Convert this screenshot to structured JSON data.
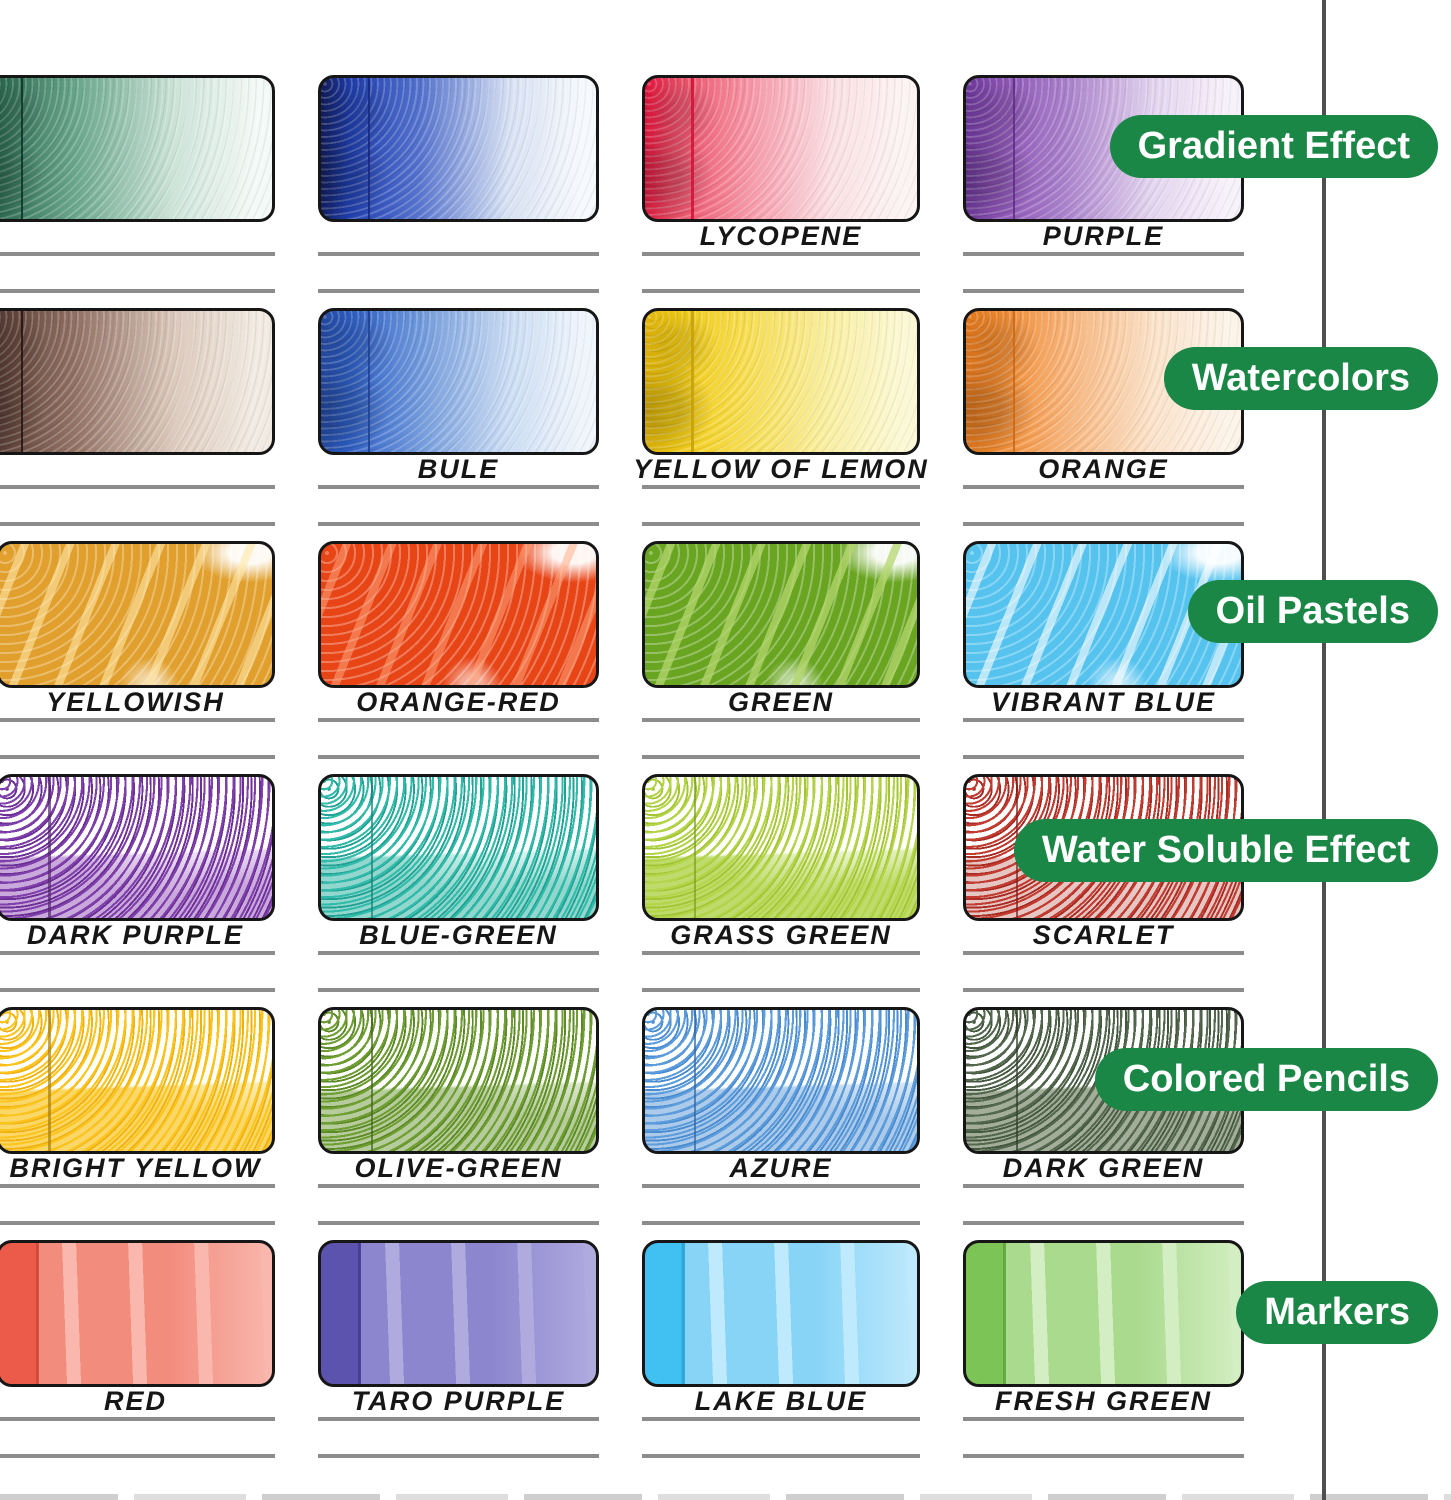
{
  "colors": {
    "badge_bg": "#1a8746",
    "badge_text": "#ffffff",
    "rule": "#8c8c8c",
    "divider": "#4f4f4f",
    "label_text": "#161616",
    "swatch_border": "#161616"
  },
  "rows": [
    {
      "badge_label": "Gradient Effect",
      "style": "watercolor-gradient",
      "swatches": [
        {
          "label": "",
          "vars": {
            "dark": "#11241c",
            "c1": "#2f6e55",
            "c2": "#6aa78c",
            "c3": "#cde4d9",
            "pale": "#f3f9f6",
            "line": "#0c3326"
          }
        },
        {
          "label": "",
          "vars": {
            "dark": "#101a56",
            "c1": "#2040b2",
            "c2": "#5472cd",
            "c3": "#d7e1f3",
            "pale": "#f6f9fd",
            "line": "#16277c"
          }
        },
        {
          "label": "LYCOPENE",
          "vars": {
            "dark": "#e2123b",
            "c1": "#ec4a64",
            "c2": "#f590a1",
            "c3": "#fadfe2",
            "pale": "#fdf3f3",
            "line": "#d40f35"
          }
        },
        {
          "label": "PURPLE",
          "vars": {
            "dark": "#6a3697",
            "c1": "#8b51b5",
            "c2": "#a87fca",
            "c3": "#e3d4ef",
            "pale": "#f7f1fa",
            "line": "#5e2c86"
          }
        }
      ]
    },
    {
      "badge_label": "Watercolors",
      "style": "watercolor-gradient",
      "swatches": [
        {
          "label": "",
          "vars": {
            "dark": "#2f1d19",
            "c1": "#5d4037",
            "c2": "#937365",
            "c3": "#dccabd",
            "pale": "#f2eae1",
            "line": "#241310"
          }
        },
        {
          "label": "BULE",
          "vars": {
            "dark": "#23479c",
            "c1": "#2e60c8",
            "c2": "#7099db",
            "c3": "#cadcf3",
            "pale": "#eff5fc",
            "line": "#1d3f92"
          }
        },
        {
          "label": "YELLOW OF LEMON",
          "vars": {
            "dark": "#e0b409",
            "c1": "#f2ca10",
            "c2": "#f6dc4d",
            "c3": "#f9efa2",
            "pale": "#fcf8d4",
            "line": "#c79f08"
          }
        },
        {
          "label": "ORANGE",
          "vars": {
            "dark": "#e0761c",
            "c1": "#f1882b",
            "c2": "#f7b277",
            "c3": "#fbe2c9",
            "pale": "#fdf3e8",
            "line": "#cc660f"
          }
        }
      ]
    },
    {
      "badge_label": "Oil Pastels",
      "style": "oil-pastel",
      "swatches": [
        {
          "label": "YELLOWISH",
          "vars": {
            "base": "#e1a02d",
            "hi": "rgba(255,232,170,0.6)"
          }
        },
        {
          "label": "ORANGE-RED",
          "vars": {
            "base": "#e84517",
            "hi": "rgba(255,170,130,0.5)"
          }
        },
        {
          "label": "GREEN",
          "vars": {
            "base": "#69a521",
            "hi": "rgba(180,215,110,0.75)"
          }
        },
        {
          "label": "VIBRANT BLUE",
          "vars": {
            "base": "#56c3ef",
            "hi": "rgba(255,255,255,0.6)"
          }
        }
      ]
    },
    {
      "badge_label": "Water Soluble Effect",
      "style": "water-soluble-pencil",
      "swatches": [
        {
          "label": "DARK PURPLE",
          "vars": {
            "dot": "#8040ab",
            "dot2": "#6c2f96",
            "wash": "#c9a8db",
            "line": "#53256f"
          }
        },
        {
          "label": "BLUE-GREEN",
          "vars": {
            "dot": "#30bbaa",
            "dot2": "#22a294",
            "wash": "#92d7cd",
            "line": "#157f72"
          }
        },
        {
          "label": "GRASS GREEN",
          "vars": {
            "dot": "#b4d449",
            "dot2": "#a3c433",
            "wash": "#bedc6c",
            "line": "#7f9c22"
          }
        },
        {
          "label": "SCARLET",
          "vars": {
            "dot": "#c23c31",
            "dot2": "#a92c24",
            "wash": "#e6c6c2",
            "line": "#7f1d16"
          }
        }
      ]
    },
    {
      "badge_label": "Colored Pencils",
      "style": "colored-pencil",
      "swatches": [
        {
          "label": "BRIGHT YELLOW",
          "vars": {
            "dot": "#fcc51e",
            "dot2": "#f0b113",
            "wash": "#fbd768",
            "line": "#a87f0e"
          }
        },
        {
          "label": "OLIVE-GREEN",
          "vars": {
            "dot": "#6f9e33",
            "dot2": "#5c8a26",
            "wash": "#b7cc9d",
            "line": "#42641c"
          }
        },
        {
          "label": "AZURE",
          "vars": {
            "dot": "#5e9ddc",
            "dot2": "#4b8bd0",
            "wash": "#accbea",
            "line": "#2f659f"
          }
        },
        {
          "label": "DARK GREEN",
          "vars": {
            "dot": "#54684f",
            "dot2": "#44573f",
            "wash": "#a3ae9a",
            "line": "#2e3d2a"
          }
        }
      ]
    },
    {
      "badge_label": "Markers",
      "style": "marker",
      "swatches": [
        {
          "label": "RED",
          "vars": {
            "band": "#ec5b49",
            "line": "#d14a39",
            "body": "#f28c7d",
            "stripe": "#f9b7ad"
          }
        },
        {
          "label": "TARO PURPLE",
          "vars": {
            "band": "#5b53ae",
            "line": "#453e93",
            "body": "#8c86ce",
            "stripe": "#b0abdf"
          }
        },
        {
          "label": "LAKE BLUE",
          "vars": {
            "band": "#40c1f2",
            "line": "#2ba4d6",
            "body": "#87d4f7",
            "stripe": "#bfe9fc"
          }
        },
        {
          "label": "FRESH GREEN",
          "vars": {
            "band": "#7dc457",
            "line": "#63a83f",
            "body": "#aada8e",
            "stripe": "#d3eec2"
          }
        }
      ]
    }
  ]
}
